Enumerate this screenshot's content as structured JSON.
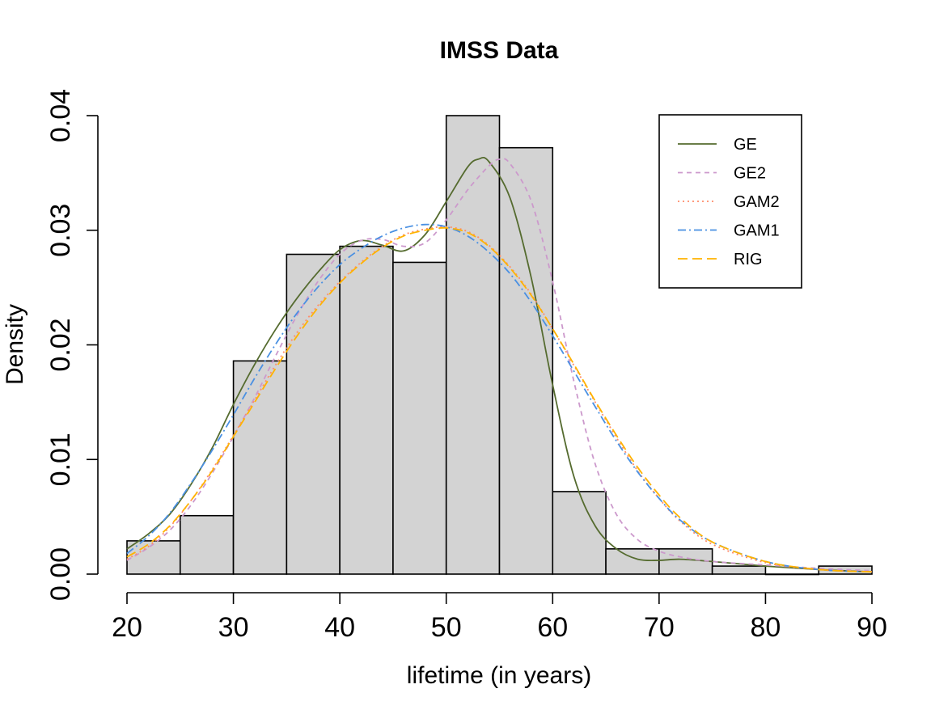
{
  "chart_data": {
    "type": "histogram",
    "title": "IMSS Data",
    "xlabel": "lifetime (in years)",
    "ylabel": "Density",
    "xlim": [
      20,
      90
    ],
    "ylim": [
      0,
      0.04
    ],
    "x_ticks": [
      20,
      30,
      40,
      50,
      60,
      70,
      80,
      90
    ],
    "y_ticks": [
      0.0,
      0.01,
      0.02,
      0.03,
      0.04
    ],
    "y_tick_labels": [
      "0.00",
      "0.01",
      "0.02",
      "0.03",
      "0.04"
    ],
    "bins": [
      {
        "start": 20,
        "end": 25,
        "density": 0.0029
      },
      {
        "start": 25,
        "end": 30,
        "density": 0.0051
      },
      {
        "start": 30,
        "end": 35,
        "density": 0.0186
      },
      {
        "start": 35,
        "end": 40,
        "density": 0.0279
      },
      {
        "start": 40,
        "end": 45,
        "density": 0.0286
      },
      {
        "start": 45,
        "end": 50,
        "density": 0.0272
      },
      {
        "start": 50,
        "end": 55,
        "density": 0.04
      },
      {
        "start": 55,
        "end": 60,
        "density": 0.0372
      },
      {
        "start": 60,
        "end": 65,
        "density": 0.0072
      },
      {
        "start": 65,
        "end": 70,
        "density": 0.0022
      },
      {
        "start": 70,
        "end": 75,
        "density": 0.0022
      },
      {
        "start": 75,
        "end": 80,
        "density": 0.0007
      },
      {
        "start": 80,
        "end": 85,
        "density": 0.0
      },
      {
        "start": 85,
        "end": 90,
        "density": 0.0007
      }
    ],
    "bar_fill": "#d3d3d3",
    "legend_position": "top-right",
    "series": [
      {
        "name": "GE",
        "color": "#556b2f",
        "dash": "solid",
        "x": [
          20,
          22,
          24,
          26,
          28,
          30,
          32,
          34,
          36,
          38,
          40,
          42,
          44,
          46,
          48,
          50,
          52,
          53,
          54,
          56,
          58,
          60,
          62,
          64,
          66,
          68,
          70,
          72,
          75,
          80,
          85,
          90
        ],
        "y": [
          0.0022,
          0.0035,
          0.0052,
          0.0078,
          0.011,
          0.0148,
          0.0183,
          0.0214,
          0.0241,
          0.0264,
          0.0283,
          0.0291,
          0.0287,
          0.0282,
          0.0296,
          0.0325,
          0.0355,
          0.0362,
          0.036,
          0.0328,
          0.0258,
          0.0165,
          0.0085,
          0.0042,
          0.0022,
          0.0013,
          0.0012,
          0.0013,
          0.0011,
          0.0007,
          0.0004,
          0.0002
        ]
      },
      {
        "name": "GE2",
        "color": "#cc99cc",
        "dash": "6,5",
        "x": [
          20,
          22,
          24,
          26,
          28,
          30,
          32,
          34,
          36,
          38,
          40,
          42,
          44,
          46,
          48,
          50,
          52,
          54,
          55,
          56,
          58,
          60,
          62,
          64,
          66,
          68,
          70,
          72,
          75,
          80,
          85,
          90
        ],
        "y": [
          0.0012,
          0.0023,
          0.0038,
          0.006,
          0.0088,
          0.012,
          0.0154,
          0.0191,
          0.0226,
          0.0256,
          0.0279,
          0.0291,
          0.0292,
          0.0286,
          0.0289,
          0.0309,
          0.0335,
          0.0356,
          0.0362,
          0.0358,
          0.0325,
          0.0255,
          0.0168,
          0.0096,
          0.0052,
          0.003,
          0.002,
          0.0015,
          0.0011,
          0.0008,
          0.0005,
          0.0003
        ]
      },
      {
        "name": "GAM2",
        "color": "#ff8c69",
        "dash": "2,4",
        "x": [
          20,
          22,
          24,
          26,
          28,
          30,
          32,
          34,
          36,
          38,
          40,
          42,
          44,
          46,
          48,
          50,
          52,
          54,
          56,
          58,
          60,
          62,
          64,
          66,
          68,
          70,
          72,
          75,
          80,
          85,
          90
        ],
        "y": [
          0.0013,
          0.0024,
          0.0041,
          0.0064,
          0.0091,
          0.0121,
          0.0152,
          0.0183,
          0.0211,
          0.0235,
          0.0255,
          0.0272,
          0.0286,
          0.0296,
          0.0301,
          0.0303,
          0.0299,
          0.0287,
          0.0268,
          0.0244,
          0.0214,
          0.0182,
          0.015,
          0.0119,
          0.009,
          0.0066,
          0.0046,
          0.0026,
          0.001,
          0.0004,
          0.0002
        ]
      },
      {
        "name": "GAM1",
        "color": "#4a90e2",
        "dash": "10,4,2,4",
        "x": [
          20,
          22,
          24,
          26,
          28,
          30,
          32,
          34,
          36,
          38,
          40,
          42,
          44,
          46,
          48,
          50,
          52,
          54,
          56,
          58,
          60,
          62,
          64,
          66,
          68,
          70,
          72,
          75,
          80,
          85,
          90
        ],
        "y": [
          0.0018,
          0.0033,
          0.0053,
          0.0079,
          0.0108,
          0.0139,
          0.0171,
          0.0201,
          0.0228,
          0.0251,
          0.027,
          0.0284,
          0.0295,
          0.0302,
          0.0305,
          0.0303,
          0.0295,
          0.0281,
          0.0262,
          0.0237,
          0.0208,
          0.0177,
          0.0146,
          0.0116,
          0.0089,
          0.0066,
          0.0047,
          0.0028,
          0.0011,
          0.0004,
          0.0002
        ]
      },
      {
        "name": "RIG",
        "color": "#ffb300",
        "dash": "12,6",
        "x": [
          20,
          22,
          24,
          26,
          28,
          30,
          32,
          34,
          36,
          38,
          40,
          42,
          44,
          46,
          48,
          50,
          52,
          54,
          56,
          58,
          60,
          62,
          64,
          66,
          68,
          70,
          72,
          75,
          80,
          85,
          90
        ],
        "y": [
          0.0015,
          0.0026,
          0.0042,
          0.0064,
          0.009,
          0.012,
          0.015,
          0.018,
          0.0208,
          0.0233,
          0.0254,
          0.0271,
          0.0285,
          0.0295,
          0.03,
          0.0302,
          0.0298,
          0.0286,
          0.0267,
          0.0243,
          0.0214,
          0.0183,
          0.0151,
          0.0121,
          0.0093,
          0.0069,
          0.0049,
          0.0028,
          0.0011,
          0.0004,
          0.0002
        ]
      }
    ]
  }
}
